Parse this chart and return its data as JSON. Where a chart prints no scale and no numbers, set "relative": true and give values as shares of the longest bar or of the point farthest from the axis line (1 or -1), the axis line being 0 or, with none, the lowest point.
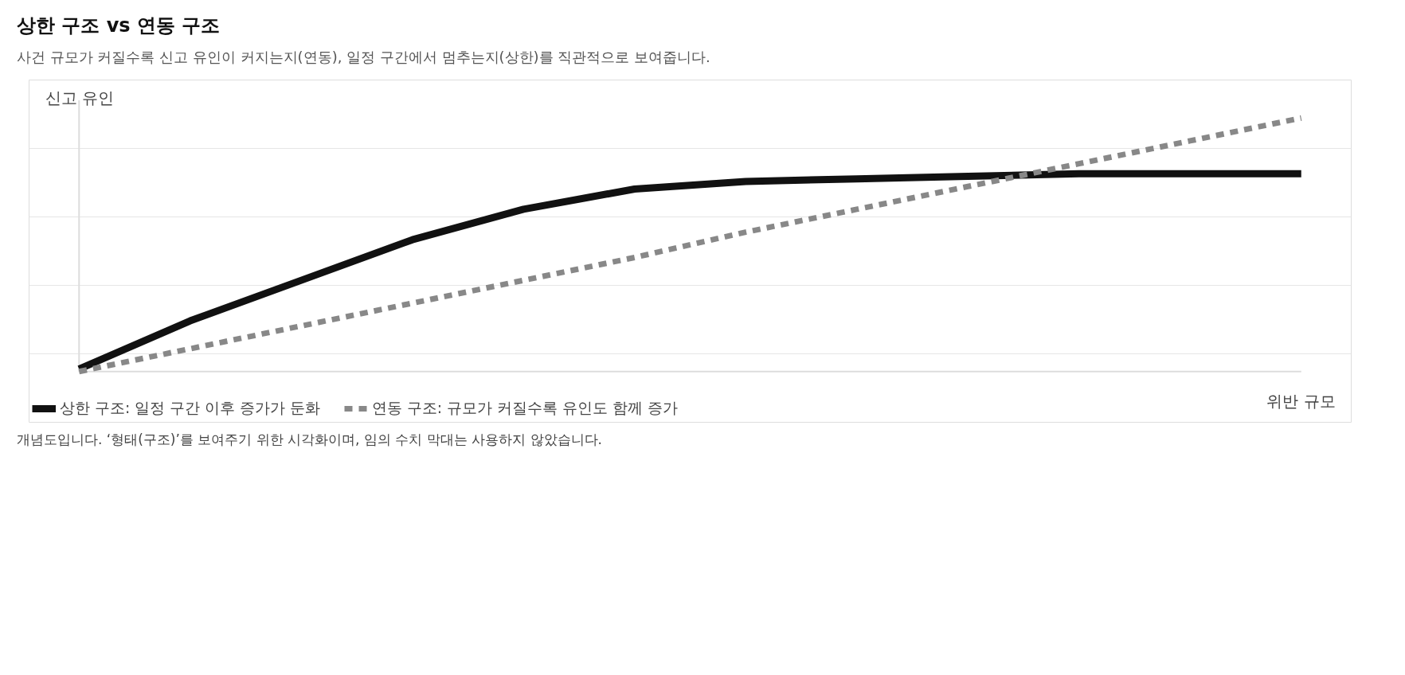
{
  "chart_data": {
    "type": "line",
    "title": "상한 구조 vs 연동 구조",
    "subtitle": "사건 규모가 커질수록 신고 유인이 커지는지(연동), 일정 구간에서 멈추는지(상한)를 직관적으로 보여줍니다.",
    "xlabel": "위반 규모",
    "ylabel": "신고 유인",
    "relative": true,
    "grid": "y",
    "legend": "bottom",
    "categories": [
      null,
      null,
      null,
      null,
      null,
      null,
      null,
      null,
      null,
      null,
      null,
      null
    ],
    "series": [
      {
        "name": "상한 구조: 일정 구간 이후 증가가 둔화",
        "color": "#111111",
        "line_style": "solid",
        "values": [
          0.01,
          0.2,
          0.36,
          0.52,
          0.64,
          0.72,
          0.75,
          0.76,
          0.77,
          0.78,
          0.78,
          0.78
        ]
      },
      {
        "name": "연동 구조: 규모가 커질수록 유인도 함께 증가",
        "color": "#888888",
        "line_style": "dashed",
        "values": [
          0,
          0.09,
          0.18,
          0.27,
          0.36,
          0.45,
          0.55,
          0.64,
          0.73,
          0.82,
          0.91,
          1.0
        ]
      }
    ],
    "annotations": [
      "개념도입니다. ‘형태(구조)’를 보여주기 위한 시각화이며, 임의 수치 막대는 사용하지 않았습니다."
    ]
  }
}
